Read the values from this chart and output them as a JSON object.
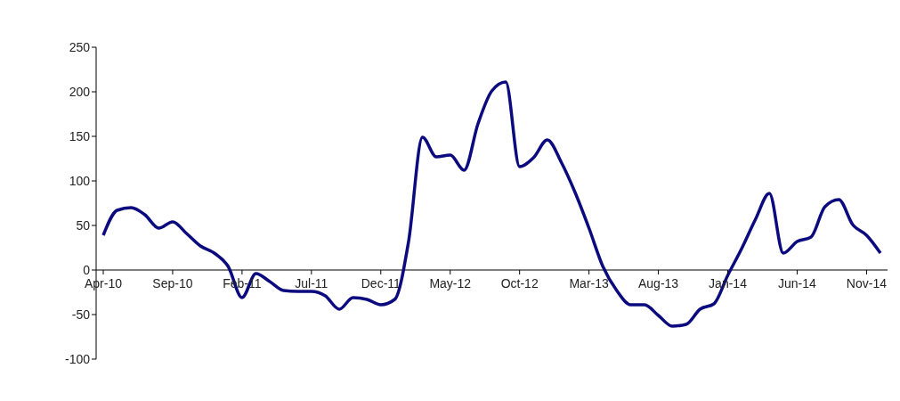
{
  "chart_data": {
    "type": "line",
    "categories": [
      "Apr-10",
      null,
      null,
      null,
      null,
      "Sep-10",
      null,
      null,
      null,
      null,
      "Feb-11",
      null,
      null,
      null,
      null,
      "Jul-11",
      null,
      null,
      null,
      null,
      "Dec-11",
      null,
      null,
      null,
      null,
      "May-12",
      null,
      null,
      null,
      null,
      "Oct-12",
      null,
      null,
      null,
      null,
      "Mar-13",
      null,
      null,
      null,
      null,
      "Aug-13",
      null,
      null,
      null,
      null,
      "Jan-14",
      null,
      null,
      null,
      null,
      "Jun-14",
      null,
      null,
      null,
      null,
      "Nov-14",
      null
    ],
    "series": [
      {
        "color": "#0b0b7f",
        "values": [
          39,
          67,
          70,
          62,
          47,
          54,
          41,
          27,
          19,
          4,
          -31,
          -4,
          -13,
          -23,
          -24,
          -24,
          -29,
          -44,
          -31,
          -33,
          -39,
          -33,
          32,
          149,
          127,
          129,
          112,
          164,
          201,
          211,
          116,
          126,
          146,
          121,
          87,
          47,
          4,
          -23,
          -39,
          -39,
          -51,
          -63,
          -61,
          -44,
          -38,
          -6,
          24,
          57,
          86,
          19,
          32,
          37,
          71,
          79,
          51,
          39,
          19
        ]
      }
    ],
    "ylim": [
      -100,
      250
    ],
    "yticks": [
      -100,
      -50,
      0,
      50,
      100,
      150,
      200,
      250
    ],
    "grid": false,
    "legend": false,
    "marker": "none",
    "line_style": "solid"
  }
}
